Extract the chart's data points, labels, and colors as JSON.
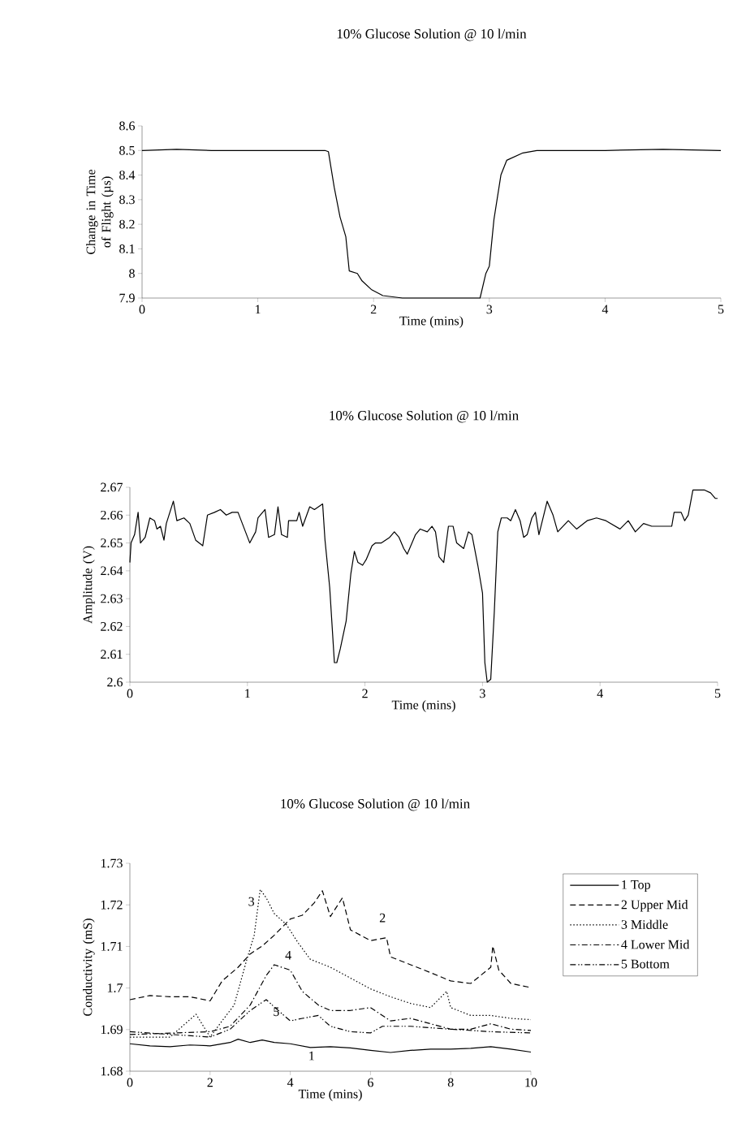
{
  "chart_data": [
    {
      "type": "line",
      "title": "10% Glucose Solution @ 10 l/min",
      "xlabel": "Time (mins)",
      "ylabel": "Change in Time of Flight (µs)",
      "color": "#000000",
      "x": [
        0,
        0.3,
        0.6,
        1.0,
        1.4,
        1.58,
        1.61,
        1.66,
        1.71,
        1.76,
        1.79,
        1.86,
        1.9,
        1.98,
        2.08,
        2.25,
        2.5,
        2.92,
        2.97,
        3.0,
        3.04,
        3.1,
        3.15,
        3.29,
        3.41,
        4.0,
        4.5,
        5.0
      ],
      "values": [
        8.5,
        8.505,
        8.5,
        8.5,
        8.5,
        8.5,
        8.495,
        8.35,
        8.23,
        8.15,
        8.01,
        8.0,
        7.97,
        7.935,
        7.91,
        7.9,
        7.9,
        7.9,
        8.0,
        8.03,
        8.22,
        8.4,
        8.46,
        8.49,
        8.5,
        8.5,
        8.505,
        8.5
      ],
      "xlim": [
        0,
        5
      ],
      "xticks": [
        0,
        1,
        2,
        3,
        4,
        5
      ],
      "ylim": [
        7.9,
        8.6
      ],
      "yticks": [
        7.9,
        8,
        8.1,
        8.2,
        8.3,
        8.4,
        8.5,
        8.6
      ]
    },
    {
      "type": "line",
      "title": "10% Glucose Solution @ 10 l/min",
      "xlabel": "Time (mins)",
      "ylabel": "Amplitude (V)",
      "color": "#000000",
      "x": [
        0,
        0.01,
        0.04,
        0.07,
        0.09,
        0.13,
        0.17,
        0.21,
        0.23,
        0.26,
        0.29,
        0.31,
        0.37,
        0.4,
        0.46,
        0.51,
        0.56,
        0.62,
        0.66,
        0.72,
        0.77,
        0.82,
        0.87,
        0.92,
        1.02,
        1.07,
        1.09,
        1.15,
        1.18,
        1.23,
        1.26,
        1.29,
        1.34,
        1.35,
        1.42,
        1.44,
        1.47,
        1.53,
        1.57,
        1.64,
        1.66,
        1.7,
        1.74,
        1.76,
        1.79,
        1.84,
        1.88,
        1.91,
        1.94,
        1.98,
        2.01,
        2.06,
        2.09,
        2.14,
        2.21,
        2.25,
        2.29,
        2.33,
        2.36,
        2.43,
        2.47,
        2.53,
        2.57,
        2.6,
        2.63,
        2.67,
        2.71,
        2.75,
        2.78,
        2.84,
        2.88,
        2.91,
        2.96,
        3.0,
        3.02,
        3.04,
        3.07,
        3.1,
        3.13,
        3.16,
        3.21,
        3.24,
        3.28,
        3.32,
        3.35,
        3.38,
        3.42,
        3.45,
        3.48,
        3.55,
        3.6,
        3.64,
        3.73,
        3.8,
        3.89,
        3.97,
        4.05,
        4.17,
        4.24,
        4.3,
        4.37,
        4.44,
        4.54,
        4.61,
        4.63,
        4.69,
        4.72,
        4.75,
        4.79,
        4.84,
        4.89,
        4.94,
        4.98,
        5.0
      ],
      "values": [
        2.643,
        2.65,
        2.653,
        2.661,
        2.65,
        2.652,
        2.659,
        2.658,
        2.655,
        2.656,
        2.651,
        2.657,
        2.665,
        2.658,
        2.659,
        2.657,
        2.651,
        2.649,
        2.66,
        2.661,
        2.662,
        2.66,
        2.661,
        2.661,
        2.65,
        2.654,
        2.659,
        2.662,
        2.652,
        2.653,
        2.663,
        2.653,
        2.652,
        2.658,
        2.658,
        2.661,
        2.656,
        2.663,
        2.662,
        2.664,
        2.651,
        2.634,
        2.607,
        2.607,
        2.612,
        2.622,
        2.639,
        2.647,
        2.643,
        2.642,
        2.644,
        2.649,
        2.65,
        2.65,
        2.652,
        2.654,
        2.652,
        2.648,
        2.646,
        2.653,
        2.655,
        2.654,
        2.656,
        2.654,
        2.645,
        2.643,
        2.656,
        2.656,
        2.65,
        2.648,
        2.654,
        2.653,
        2.642,
        2.632,
        2.607,
        2.6,
        2.601,
        2.625,
        2.654,
        2.659,
        2.659,
        2.658,
        2.662,
        2.658,
        2.652,
        2.653,
        2.659,
        2.661,
        2.653,
        2.665,
        2.66,
        2.654,
        2.658,
        2.655,
        2.658,
        2.659,
        2.658,
        2.655,
        2.658,
        2.654,
        2.657,
        2.656,
        2.656,
        2.656,
        2.661,
        2.661,
        2.658,
        2.66,
        2.669,
        2.669,
        2.669,
        2.668,
        2.666,
        2.666
      ],
      "xlim": [
        0,
        5
      ],
      "xticks": [
        0,
        1,
        2,
        3,
        4,
        5
      ],
      "ylim": [
        2.6,
        2.67
      ],
      "yticks": [
        2.6,
        2.61,
        2.62,
        2.63,
        2.64,
        2.65,
        2.66,
        2.67
      ]
    },
    {
      "type": "line",
      "title": "10% Glucose Solution @ 10 l/min",
      "xlabel": "Time (mins)",
      "ylabel": "Conductivity (mS)",
      "legend": "right",
      "xlim": [
        0,
        10
      ],
      "xticks": [
        0,
        2,
        4,
        6,
        8,
        10
      ],
      "ylim": [
        1.68,
        1.73
      ],
      "yticks": [
        1.68,
        1.69,
        1.7,
        1.71,
        1.72,
        1.73
      ],
      "series": [
        {
          "name": "1 Top",
          "color": "#000000",
          "line_style": "solid",
          "x": [
            0,
            0.5,
            1,
            1.5,
            2,
            2.5,
            2.7,
            3,
            3.3,
            3.6,
            4,
            4.5,
            5,
            5.5,
            6,
            6.5,
            7,
            7.5,
            8,
            8.5,
            9,
            9.5,
            10
          ],
          "values": [
            1.6866,
            1.6861,
            1.6859,
            1.6863,
            1.6861,
            1.6869,
            1.6877,
            1.6869,
            1.6875,
            1.6869,
            1.6866,
            1.6857,
            1.6859,
            1.6856,
            1.685,
            1.6845,
            1.685,
            1.6853,
            1.6853,
            1.6855,
            1.6859,
            1.6853,
            1.6846
          ]
        },
        {
          "name": "2 Upper Mid",
          "color": "#000000",
          "line_style": "dashed",
          "x": [
            0,
            0.5,
            1,
            1.5,
            2,
            2.3,
            2.7,
            3,
            3.3,
            3.6,
            4,
            4.3,
            4.6,
            4.8,
            5,
            5.3,
            5.5,
            6,
            6.4,
            6.5,
            7,
            7.5,
            8,
            8.5,
            9,
            9.05,
            9.2,
            9.5,
            10
          ],
          "values": [
            1.6972,
            1.6982,
            1.6979,
            1.6979,
            1.6969,
            1.7017,
            1.705,
            1.7082,
            1.7101,
            1.7127,
            1.7166,
            1.7175,
            1.7205,
            1.7234,
            1.7172,
            1.7217,
            1.714,
            1.7114,
            1.7121,
            1.7075,
            1.7056,
            1.7037,
            1.7017,
            1.7011,
            1.705,
            1.7101,
            1.7043,
            1.7011,
            1.7001
          ]
        },
        {
          "name": "3 Middle",
          "color": "#000000",
          "line_style": "dotted",
          "x": [
            0,
            1,
            1.65,
            2,
            2.3,
            2.6,
            2.9,
            3.1,
            3.25,
            3.4,
            3.6,
            3.9,
            4.2,
            4.5,
            5,
            5.5,
            6,
            6.5,
            7,
            7.5,
            7.9,
            8,
            8.5,
            9,
            9.5,
            10
          ],
          "values": [
            1.6882,
            1.6882,
            1.6937,
            1.6882,
            1.6921,
            1.6959,
            1.7063,
            1.7127,
            1.7237,
            1.7217,
            1.7179,
            1.7153,
            1.7108,
            1.7069,
            1.705,
            1.7024,
            1.6998,
            1.6979,
            1.6963,
            1.6953,
            1.6992,
            1.6953,
            1.6934,
            1.6934,
            1.6927,
            1.6924
          ]
        },
        {
          "name": "4 Lower Mid",
          "color": "#000000",
          "line_style": "dashdot",
          "x": [
            0,
            2,
            2.5,
            3,
            3.4,
            3.6,
            4,
            4.3,
            4.7,
            5,
            5.5,
            6,
            6.5,
            7,
            7.5,
            8,
            8.5,
            9,
            9.5,
            10
          ],
          "values": [
            1.6888,
            1.6895,
            1.6908,
            1.6959,
            1.703,
            1.7056,
            1.7043,
            1.6992,
            1.6959,
            1.6946,
            1.6946,
            1.6953,
            1.6921,
            1.6927,
            1.6914,
            1.6901,
            1.6901,
            1.6914,
            1.6901,
            1.6898
          ]
        },
        {
          "name": "5 Bottom",
          "color": "#000000",
          "line_style": "dashdotdot",
          "x": [
            0,
            2,
            2.5,
            3,
            3.4,
            3.7,
            4,
            4.3,
            4.7,
            5,
            5.5,
            6,
            6.3,
            7,
            8,
            9,
            10
          ],
          "values": [
            1.6895,
            1.6882,
            1.6901,
            1.6946,
            1.6972,
            1.6946,
            1.6921,
            1.6927,
            1.6934,
            1.6908,
            1.6895,
            1.6892,
            1.6908,
            1.6908,
            1.6901,
            1.6895,
            1.6892
          ]
        }
      ],
      "annotations": [
        "1",
        "2",
        "3",
        "4",
        "5"
      ]
    }
  ]
}
